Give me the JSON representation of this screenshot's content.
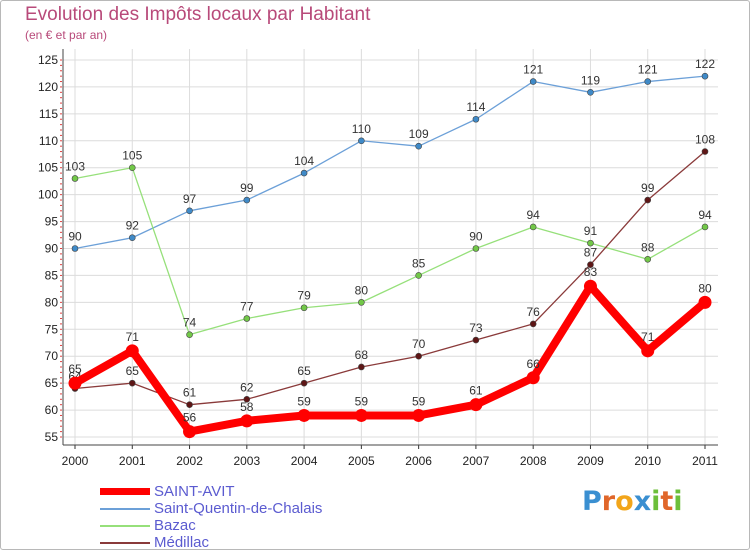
{
  "title": "Evolution des Impôts locaux par Habitant",
  "subtitle": "(en € et par an)",
  "logo": {
    "letters": [
      "P",
      "r",
      "o",
      "x",
      "i",
      "t",
      "i"
    ],
    "colors": [
      "#3a8fd1",
      "#e0662a",
      "#f2a51a",
      "#3a8fd1",
      "#6cbf3a",
      "#e0662a",
      "#6cbf3a"
    ]
  },
  "chart_data": {
    "type": "line",
    "title": "Evolution des Impôts locaux par Habitant",
    "ylabel": "(en € et par an)",
    "xlabel": "",
    "x": [
      2000,
      2001,
      2002,
      2003,
      2004,
      2005,
      2006,
      2007,
      2008,
      2009,
      2010,
      2011
    ],
    "x_labels": [
      "2000",
      "2001",
      "2002",
      "2003",
      "2004",
      "2005",
      "2006",
      "2007",
      "2008",
      "2009",
      "2010",
      "2011"
    ],
    "ylim": [
      55,
      125
    ],
    "yticks": [
      55,
      60,
      65,
      70,
      75,
      80,
      85,
      90,
      95,
      100,
      105,
      110,
      115,
      120,
      125
    ],
    "grid": true,
    "series": [
      {
        "name": "Saint-Quentin-de-Chalais",
        "color": "#6ca0d8",
        "marker": "#3f8ac8",
        "values": [
          90,
          92,
          97,
          99,
          104,
          110,
          109,
          114,
          121,
          119,
          121,
          122
        ]
      },
      {
        "name": "Bazac",
        "color": "#96e07a",
        "marker": "#72c848",
        "values": [
          103,
          105,
          74,
          77,
          79,
          80,
          85,
          90,
          94,
          91,
          88,
          94
        ]
      },
      {
        "name": "Médillac",
        "color": "#8a3a3a",
        "marker": "#5e1616",
        "values": [
          64,
          65,
          61,
          62,
          65,
          68,
          70,
          73,
          76,
          87,
          99,
          108
        ]
      },
      {
        "name": "SAINT-AVIT",
        "color": "#ff0000",
        "marker": "#ff0000",
        "values": [
          65,
          71,
          56,
          58,
          59,
          59,
          59,
          61,
          66,
          83,
          71,
          80
        ]
      }
    ]
  },
  "legend": [
    {
      "name": "SAINT-AVIT",
      "color": "#ff0000",
      "thick": true
    },
    {
      "name": "Saint-Quentin-de-Chalais",
      "color": "#6ca0d8",
      "thick": false
    },
    {
      "name": "Bazac",
      "color": "#96e07a",
      "thick": false
    },
    {
      "name": "Médillac",
      "color": "#8a3a3a",
      "thick": false
    }
  ]
}
